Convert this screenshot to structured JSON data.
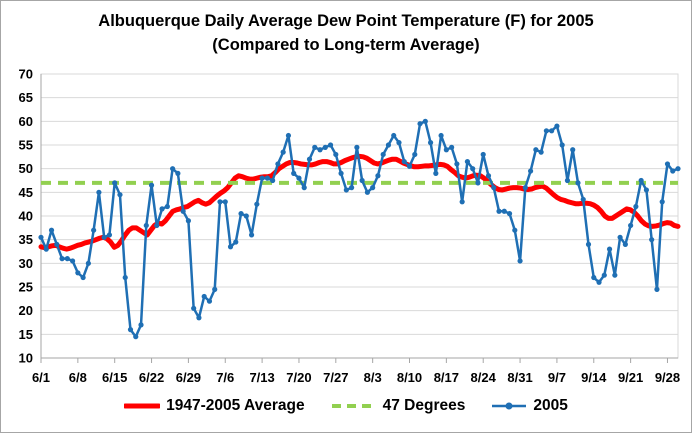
{
  "chart_data": {
    "type": "line",
    "title": "Albuquerque Daily Average Dew Point Temperature (F) for 2005",
    "subtitle": "(Compared to Long-term Average)",
    "xlabel": "",
    "ylabel": "",
    "ylim": [
      10,
      70
    ],
    "yticks": [
      10,
      15,
      20,
      25,
      30,
      35,
      40,
      45,
      50,
      55,
      60,
      65,
      70
    ],
    "x_tick_labels": [
      "6/1",
      "6/8",
      "6/15",
      "6/22",
      "6/29",
      "7/6",
      "7/13",
      "7/20",
      "7/27",
      "8/3",
      "8/10",
      "8/17",
      "8/24",
      "8/31",
      "9/7",
      "9/14",
      "9/21",
      "9/28"
    ],
    "x_tick_day_index": [
      0,
      7,
      14,
      21,
      28,
      35,
      42,
      49,
      56,
      63,
      70,
      77,
      84,
      91,
      98,
      105,
      112,
      119
    ],
    "n_days": 122,
    "grid": true,
    "legend_position": "bottom",
    "series": [
      {
        "name": "1947-2005 Average",
        "color": "#ff0000",
        "style": "thick-line",
        "values": [
          33.5,
          33.3,
          33.5,
          33.7,
          33.8,
          33.5,
          33.2,
          33.0,
          33.2,
          33.5,
          33.8,
          34.0,
          34.3,
          34.5,
          34.7,
          35.0,
          35.3,
          35.5,
          35.2,
          34.5,
          33.4,
          33.8,
          34.8,
          36.0,
          37.0,
          37.5,
          37.5,
          37.0,
          36.5,
          36.0,
          37.0,
          38.0,
          38.5,
          38.3,
          39.0,
          40.0,
          41.0,
          41.3,
          41.5,
          41.8,
          42.0,
          42.5,
          43.0,
          43.3,
          42.8,
          42.5,
          42.8,
          43.5,
          44.2,
          44.8,
          45.3,
          46.0,
          47.0,
          48.0,
          48.5,
          48.3,
          48.0,
          47.8,
          47.8,
          48.0,
          48.2,
          48.3,
          48.3,
          48.5,
          49.2,
          50.0,
          50.5,
          51.0,
          51.3,
          51.3,
          51.2,
          51.0,
          50.9,
          50.8,
          50.8,
          51.0,
          51.3,
          51.5,
          51.5,
          51.3,
          51.0,
          51.0,
          51.3,
          51.7,
          52.0,
          52.3,
          52.5,
          52.6,
          52.5,
          52.2,
          51.7,
          51.2,
          51.0,
          51.2,
          51.5,
          51.8,
          52.0,
          52.0,
          51.6,
          51.2,
          50.9,
          50.6,
          50.4,
          50.4,
          50.5,
          50.6,
          50.6,
          50.7,
          50.8,
          50.9,
          50.8,
          50.5,
          49.8,
          49.2,
          48.5,
          48.2,
          48.0,
          48.2,
          48.5,
          48.6,
          48.5,
          48.0,
          47.3,
          46.6,
          46.0,
          45.6,
          45.5,
          45.7,
          45.9,
          46.0,
          46.0,
          45.9,
          45.7,
          45.6,
          45.7,
          46.0,
          46.2,
          46.3,
          45.9,
          45.2,
          44.5,
          43.9,
          43.5,
          43.3,
          43.0,
          42.8,
          42.6,
          42.6,
          42.7,
          42.7,
          42.6,
          42.3,
          41.8,
          41.0,
          40.0,
          39.5,
          39.5,
          40.0,
          40.5,
          41.0,
          41.5,
          41.3,
          40.8,
          40.0,
          39.0,
          38.3,
          37.9,
          37.8,
          37.9,
          38.1,
          38.4,
          38.6,
          38.5,
          38.0,
          37.8
        ]
      },
      {
        "name": "47 Degrees",
        "color": "#92d050",
        "style": "dashed",
        "values": [
          47,
          47
        ]
      },
      {
        "name": "2005",
        "color": "#1f6fb4",
        "style": "line-markers",
        "values": [
          35.5,
          33.0,
          37.0,
          34.0,
          31.0,
          31.0,
          30.5,
          28.0,
          27.0,
          30.0,
          37.0,
          45.0,
          35.5,
          36.0,
          47.0,
          44.5,
          27.0,
          16.0,
          14.5,
          17.0,
          38.0,
          46.5,
          38.0,
          41.5,
          42.0,
          50.0,
          49.0,
          41.0,
          39.0,
          20.5,
          18.5,
          23.0,
          22.0,
          24.5,
          43.0,
          43.0,
          33.5,
          34.5,
          40.5,
          40.0,
          36.0,
          42.5,
          48.0,
          48.0,
          47.5,
          51.0,
          53.5,
          57.0,
          49.0,
          48.0,
          46.0,
          52.0,
          54.5,
          54.0,
          54.5,
          55.0,
          53.0,
          49.0,
          45.5,
          46.0,
          54.5,
          47.5,
          45.0,
          46.0,
          48.5,
          53.0,
          55.0,
          57.0,
          55.5,
          51.5,
          50.5,
          53.0,
          59.5,
          60.0,
          55.5,
          49.0,
          57.0,
          54.0,
          54.5,
          51.0,
          43.0,
          51.5,
          50.0,
          47.0,
          53.0,
          48.5,
          46.0,
          41.0,
          41.0,
          40.5,
          37.0,
          30.5,
          46.0,
          49.5,
          54.0,
          53.5,
          58.0,
          58.0,
          59.0,
          55.0,
          47.5,
          54.0,
          47.0,
          43.5,
          34.0,
          27.0,
          26.0,
          27.5,
          33.0,
          27.5,
          35.5,
          34.0,
          38.0,
          42.0,
          47.5,
          45.5,
          35.0,
          24.5,
          43.0,
          51.0,
          49.5,
          50.0
        ]
      }
    ]
  }
}
